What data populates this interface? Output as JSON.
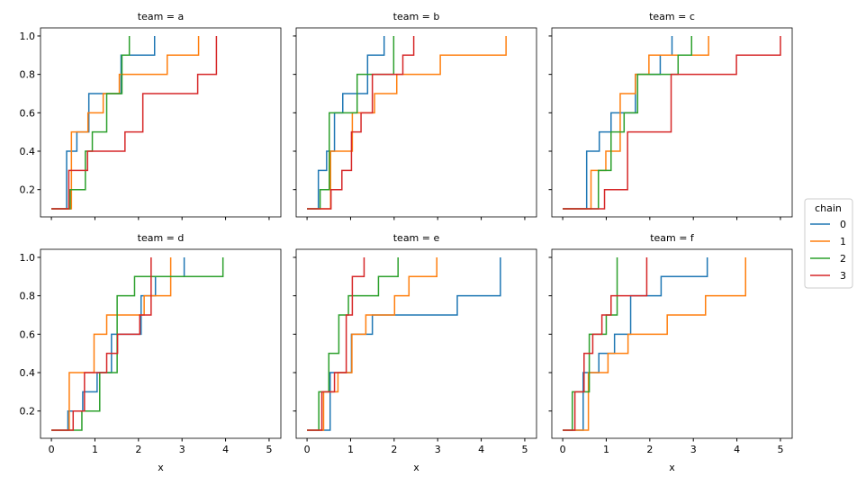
{
  "chart_data": {
    "type": "line",
    "subtype": "step",
    "xlabel": "x",
    "ylabel": "",
    "xlim": [
      -0.25,
      5.27
    ],
    "ylim": [
      0.058,
      1.042
    ],
    "xticks": [
      "0",
      "1",
      "2",
      "3",
      "4",
      "5"
    ],
    "yticks": [
      "0.2",
      "0.4",
      "0.6",
      "0.8",
      "1.0"
    ],
    "grid": false,
    "legend": {
      "title": "chain",
      "placement": "right",
      "entries": [
        "0",
        "1",
        "2",
        "3"
      ]
    },
    "colors": [
      "#1f77b4",
      "#ff7f0e",
      "#2ca02c",
      "#d62728"
    ],
    "facets": [
      {
        "title": "team = a",
        "series": [
          {
            "name": "0",
            "steps": [
              [
                0,
                0.1
              ],
              [
                0.35,
                0.4
              ],
              [
                0.585,
                0.5
              ],
              [
                0.86,
                0.7
              ],
              [
                1.6,
                0.9
              ],
              [
                2.37,
                1.0
              ]
            ]
          },
          {
            "name": "1",
            "steps": [
              [
                0,
                0.1
              ],
              [
                0.46,
                0.5
              ],
              [
                0.84,
                0.6
              ],
              [
                1.19,
                0.7
              ],
              [
                1.56,
                0.8
              ],
              [
                2.66,
                0.9
              ],
              [
                3.38,
                1.0
              ]
            ]
          },
          {
            "name": "2",
            "steps": [
              [
                0,
                0.1
              ],
              [
                0.43,
                0.2
              ],
              [
                0.78,
                0.4
              ],
              [
                0.94,
                0.5
              ],
              [
                1.27,
                0.7
              ],
              [
                1.62,
                0.9
              ],
              [
                1.79,
                1.0
              ]
            ]
          },
          {
            "name": "3",
            "steps": [
              [
                0,
                0.1
              ],
              [
                0.4,
                0.3
              ],
              [
                0.83,
                0.4
              ],
              [
                1.69,
                0.5
              ],
              [
                2.1,
                0.7
              ],
              [
                3.36,
                0.8
              ],
              [
                3.79,
                1.0
              ]
            ]
          }
        ]
      },
      {
        "title": "team = b",
        "series": [
          {
            "name": "0",
            "steps": [
              [
                0,
                0.1
              ],
              [
                0.26,
                0.3
              ],
              [
                0.45,
                0.4
              ],
              [
                0.63,
                0.6
              ],
              [
                0.82,
                0.7
              ],
              [
                1.39,
                0.9
              ],
              [
                1.77,
                1.0
              ]
            ]
          },
          {
            "name": "1",
            "steps": [
              [
                0,
                0.1
              ],
              [
                0.54,
                0.4
              ],
              [
                1.04,
                0.6
              ],
              [
                1.55,
                0.7
              ],
              [
                2.06,
                0.8
              ],
              [
                3.06,
                0.9
              ],
              [
                4.57,
                1.0
              ]
            ]
          },
          {
            "name": "2",
            "steps": [
              [
                0,
                0.1
              ],
              [
                0.3,
                0.2
              ],
              [
                0.51,
                0.6
              ],
              [
                1.15,
                0.8
              ],
              [
                1.99,
                1.0
              ]
            ]
          },
          {
            "name": "3",
            "steps": [
              [
                0,
                0.1
              ],
              [
                0.55,
                0.2
              ],
              [
                0.8,
                0.3
              ],
              [
                1.02,
                0.5
              ],
              [
                1.24,
                0.6
              ],
              [
                1.5,
                0.8
              ],
              [
                2.2,
                0.9
              ],
              [
                2.45,
                1.0
              ]
            ]
          }
        ]
      },
      {
        "title": "team = c",
        "series": [
          {
            "name": "0",
            "steps": [
              [
                0,
                0.1
              ],
              [
                0.55,
                0.4
              ],
              [
                0.84,
                0.5
              ],
              [
                1.11,
                0.6
              ],
              [
                1.67,
                0.8
              ],
              [
                2.24,
                0.9
              ],
              [
                2.51,
                1.0
              ]
            ]
          },
          {
            "name": "1",
            "steps": [
              [
                0,
                0.1
              ],
              [
                0.65,
                0.3
              ],
              [
                0.99,
                0.4
              ],
              [
                1.32,
                0.7
              ],
              [
                1.67,
                0.8
              ],
              [
                1.98,
                0.9
              ],
              [
                3.35,
                1.0
              ]
            ]
          },
          {
            "name": "2",
            "steps": [
              [
                0,
                0.1
              ],
              [
                0.82,
                0.3
              ],
              [
                1.11,
                0.5
              ],
              [
                1.41,
                0.6
              ],
              [
                1.72,
                0.8
              ],
              [
                2.65,
                0.9
              ],
              [
                2.96,
                1.0
              ]
            ]
          },
          {
            "name": "3",
            "steps": [
              [
                0,
                0.1
              ],
              [
                0.96,
                0.2
              ],
              [
                1.49,
                0.5
              ],
              [
                2.49,
                0.8
              ],
              [
                3.99,
                0.9
              ],
              [
                5.0,
                1.0
              ]
            ]
          }
        ]
      },
      {
        "title": "team = d",
        "series": [
          {
            "name": "0",
            "steps": [
              [
                0,
                0.1
              ],
              [
                0.38,
                0.2
              ],
              [
                0.72,
                0.3
              ],
              [
                1.05,
                0.4
              ],
              [
                1.38,
                0.6
              ],
              [
                2.06,
                0.8
              ],
              [
                2.39,
                0.9
              ],
              [
                3.05,
                1.0
              ]
            ]
          },
          {
            "name": "1",
            "steps": [
              [
                0,
                0.1
              ],
              [
                0.41,
                0.4
              ],
              [
                0.98,
                0.6
              ],
              [
                1.27,
                0.7
              ],
              [
                2.13,
                0.8
              ],
              [
                2.74,
                1.0
              ]
            ]
          },
          {
            "name": "2",
            "steps": [
              [
                0,
                0.1
              ],
              [
                0.7,
                0.2
              ],
              [
                1.11,
                0.4
              ],
              [
                1.51,
                0.8
              ],
              [
                1.91,
                0.9
              ],
              [
                3.94,
                1.0
              ]
            ]
          },
          {
            "name": "3",
            "steps": [
              [
                0,
                0.1
              ],
              [
                0.5,
                0.2
              ],
              [
                0.76,
                0.4
              ],
              [
                1.27,
                0.5
              ],
              [
                1.52,
                0.6
              ],
              [
                2.03,
                0.7
              ],
              [
                2.29,
                1.0
              ]
            ]
          }
        ]
      },
      {
        "title": "team = e",
        "series": [
          {
            "name": "0",
            "steps": [
              [
                0,
                0.1
              ],
              [
                0.53,
                0.4
              ],
              [
                1.02,
                0.6
              ],
              [
                1.5,
                0.7
              ],
              [
                3.45,
                0.8
              ],
              [
                4.44,
                1.0
              ]
            ]
          },
          {
            "name": "1",
            "steps": [
              [
                0,
                0.1
              ],
              [
                0.38,
                0.3
              ],
              [
                0.71,
                0.4
              ],
              [
                1.03,
                0.6
              ],
              [
                1.35,
                0.7
              ],
              [
                2.01,
                0.8
              ],
              [
                2.34,
                0.9
              ],
              [
                2.98,
                1.0
              ]
            ]
          },
          {
            "name": "2",
            "steps": [
              [
                0,
                0.1
              ],
              [
                0.27,
                0.3
              ],
              [
                0.5,
                0.5
              ],
              [
                0.73,
                0.7
              ],
              [
                0.95,
                0.8
              ],
              [
                1.64,
                0.9
              ],
              [
                2.09,
                1.0
              ]
            ]
          },
          {
            "name": "3",
            "steps": [
              [
                0,
                0.1
              ],
              [
                0.34,
                0.3
              ],
              [
                0.63,
                0.4
              ],
              [
                0.9,
                0.7
              ],
              [
                1.04,
                0.9
              ],
              [
                1.31,
                1.0
              ]
            ]
          }
        ]
      },
      {
        "title": "team = f",
        "series": [
          {
            "name": "0",
            "steps": [
              [
                0,
                0.1
              ],
              [
                0.47,
                0.4
              ],
              [
                0.83,
                0.5
              ],
              [
                1.19,
                0.6
              ],
              [
                1.56,
                0.8
              ],
              [
                2.26,
                0.9
              ],
              [
                3.32,
                1.0
              ]
            ]
          },
          {
            "name": "1",
            "steps": [
              [
                0,
                0.1
              ],
              [
                0.59,
                0.4
              ],
              [
                1.04,
                0.5
              ],
              [
                1.5,
                0.6
              ],
              [
                2.4,
                0.7
              ],
              [
                3.28,
                0.8
              ],
              [
                4.2,
                1.0
              ]
            ]
          },
          {
            "name": "2",
            "steps": [
              [
                0,
                0.1
              ],
              [
                0.22,
                0.3
              ],
              [
                0.61,
                0.6
              ],
              [
                1.0,
                0.7
              ],
              [
                1.25,
                1.0
              ]
            ]
          },
          {
            "name": "3",
            "steps": [
              [
                0,
                0.1
              ],
              [
                0.28,
                0.3
              ],
              [
                0.49,
                0.5
              ],
              [
                0.69,
                0.6
              ],
              [
                0.9,
                0.7
              ],
              [
                1.11,
                0.8
              ],
              [
                1.93,
                1.0
              ]
            ]
          }
        ]
      }
    ]
  }
}
